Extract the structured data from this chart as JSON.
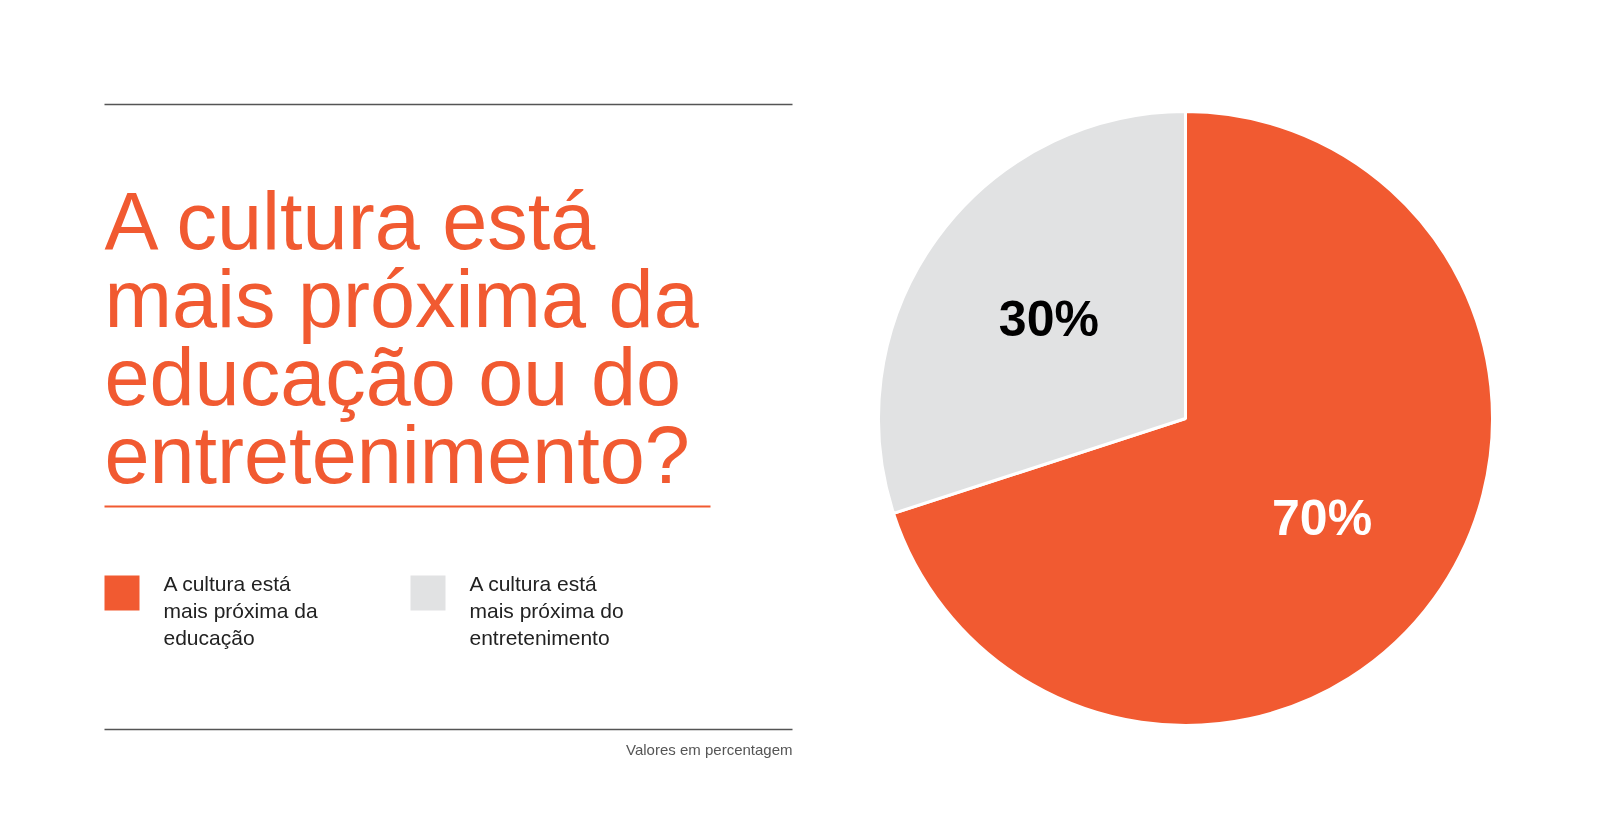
{
  "chart_data": {
    "type": "pie",
    "title": "A cultura está mais próxima da educação ou do entretenimento?",
    "categories": [
      "A cultura está mais próxima da educação",
      "A cultura está mais próxima do entretenimento"
    ],
    "values": [
      70,
      30
    ],
    "colors": [
      "#f15a31",
      "#e1e2e3"
    ],
    "value_labels": [
      "70%",
      "30%"
    ],
    "legend": "left",
    "annotations": [
      "Valores em percentagem"
    ]
  }
}
